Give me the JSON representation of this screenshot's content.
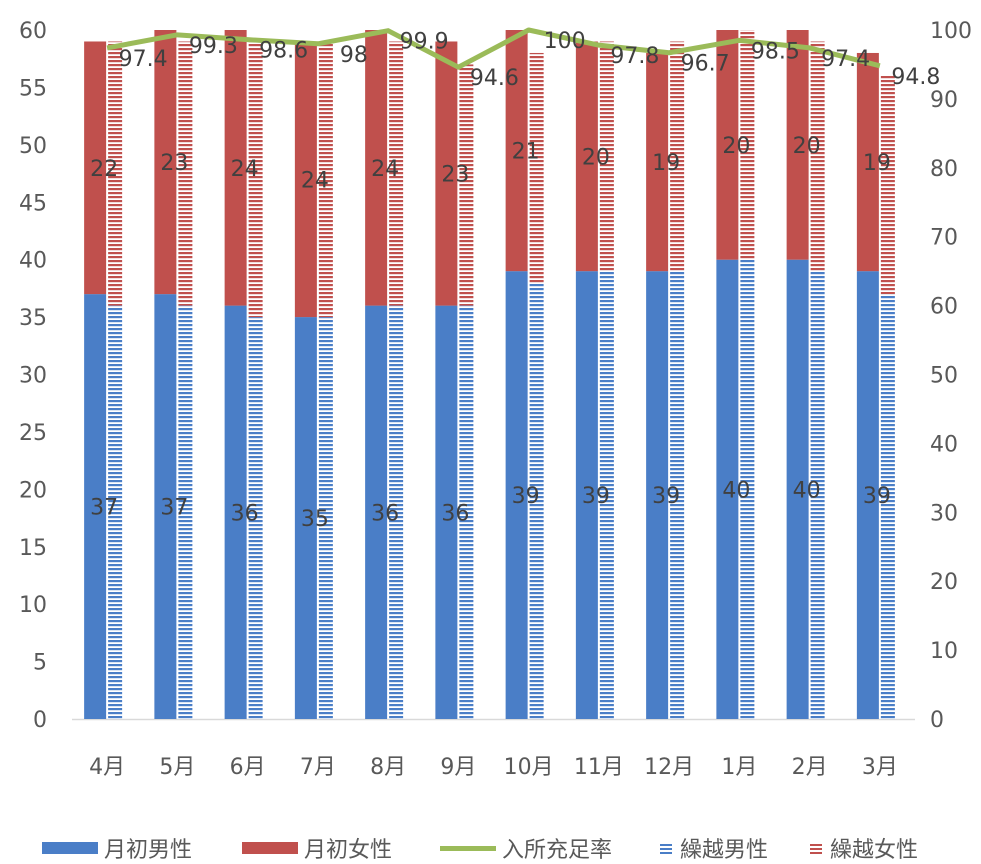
{
  "chart_data": {
    "type": "bar",
    "stacked": true,
    "categories": [
      "4月",
      "5月",
      "6月",
      "7月",
      "8月",
      "9月",
      "10月",
      "11月",
      "12月",
      "1月",
      "2月",
      "3月"
    ],
    "series": [
      {
        "name": "月初男性",
        "type": "bar",
        "group": "月初",
        "axis": "left",
        "color": "#4A7EC7",
        "values": [
          37,
          37,
          36,
          35,
          36,
          36,
          39,
          39,
          39,
          40,
          40,
          39
        ]
      },
      {
        "name": "月初女性",
        "type": "bar",
        "group": "月初",
        "axis": "left",
        "color": "#C0504D",
        "values": [
          22,
          23,
          24,
          24,
          24,
          23,
          21,
          20,
          19,
          20,
          20,
          19
        ]
      },
      {
        "name": "入所充足率",
        "type": "line",
        "axis": "right",
        "color": "#9BBB59",
        "values": [
          97.4,
          99.3,
          98.6,
          98,
          99.9,
          94.6,
          100,
          97.8,
          96.7,
          98.5,
          97.4,
          94.8
        ]
      },
      {
        "name": "繰越男性",
        "type": "bar",
        "group": "繰越",
        "axis": "left",
        "color": "#4A7EC7",
        "pattern": "horizontal-stripes",
        "values": [
          36,
          36,
          35,
          35,
          36,
          36,
          38,
          39,
          39,
          40,
          39,
          37
        ]
      },
      {
        "name": "繰越女性",
        "type": "bar",
        "group": "繰越",
        "axis": "left",
        "color": "#C0504D",
        "pattern": "horizontal-stripes",
        "values": [
          23,
          23,
          24,
          24,
          23,
          21,
          20,
          20,
          20,
          20,
          20,
          19
        ]
      }
    ],
    "y_left": {
      "min": 0,
      "max": 60,
      "step": 5,
      "ticks": [
        "0",
        "5",
        "10",
        "15",
        "20",
        "25",
        "30",
        "35",
        "40",
        "45",
        "50",
        "55",
        "60"
      ]
    },
    "y_right": {
      "min": 0,
      "max": 100,
      "step": 10,
      "ticks": [
        "0",
        "10",
        "20",
        "30",
        "40",
        "50",
        "60",
        "70",
        "80",
        "90",
        "100"
      ]
    },
    "grid": false,
    "legend_position": "bottom",
    "data_labels": {
      "月初男性": [
        "37",
        "37",
        "36",
        "35",
        "36",
        "36",
        "39",
        "39",
        "39",
        "40",
        "40",
        "39"
      ],
      "月初女性": [
        "22",
        "23",
        "24",
        "24",
        "24",
        "23",
        "21",
        "20",
        "19",
        "20",
        "20",
        "19"
      ],
      "入所充足率": [
        "97.4",
        "99.3",
        "98.6",
        "98",
        "99.9",
        "94.6",
        "100",
        "97.8",
        "96.7",
        "98.5",
        "97.4",
        "94.8"
      ]
    }
  },
  "legend": {
    "items": [
      {
        "label": "月初男性"
      },
      {
        "label": "月初女性"
      },
      {
        "label": "入所充足率"
      },
      {
        "label": "繰越男性"
      },
      {
        "label": "繰越女性"
      }
    ]
  }
}
